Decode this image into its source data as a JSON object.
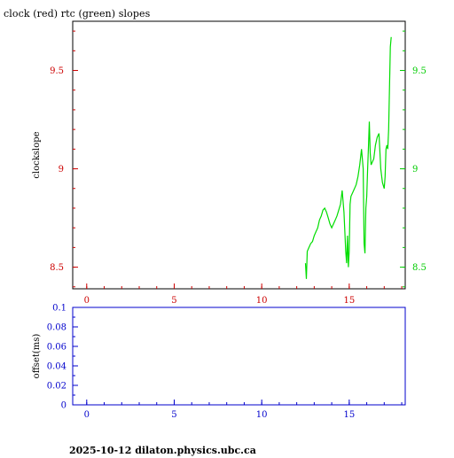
{
  "title": "clock (red) rtc (green) slopes",
  "footer": "2025-10-12  dilaton.physics.ubc.ca",
  "colors": {
    "left_axis": "#cc0000",
    "right_axis": "#00cc00",
    "offset_axis": "#0000cc",
    "frame": "#000000",
    "clock": "#cc0000",
    "rtc": "#00dd00"
  },
  "chart_data": [
    {
      "type": "line",
      "name": "slopes",
      "ylabel": "clockslope",
      "xlim": [
        -0.8,
        18.2
      ],
      "ylim": [
        8.39,
        9.75
      ],
      "x_ticks": [
        0,
        5,
        10,
        15
      ],
      "x_tick_labels": [
        "0",
        "5",
        "10",
        "15"
      ],
      "y_ticks": [
        8.5,
        9,
        9.5
      ],
      "y_tick_labels": [
        "8.5",
        "9",
        "9.5"
      ],
      "y_ticks_right": [
        8.5,
        9,
        9.5
      ],
      "y_tick_labels_right": [
        "8.5",
        "9",
        "9.5"
      ],
      "series": [
        {
          "name": "rtc (green)",
          "color": "#00dd00",
          "x": [
            12.5,
            12.55,
            12.6,
            12.7,
            12.8,
            12.9,
            13.0,
            13.1,
            13.2,
            13.3,
            13.4,
            13.5,
            13.6,
            13.7,
            13.8,
            13.9,
            14.0,
            14.1,
            14.2,
            14.3,
            14.4,
            14.5,
            14.6,
            14.7,
            14.8,
            14.85,
            14.9,
            14.95,
            15.0,
            15.05,
            15.1,
            15.2,
            15.3,
            15.4,
            15.5,
            15.6,
            15.7,
            15.8,
            15.85,
            15.9,
            15.95,
            16.0,
            16.05,
            16.1,
            16.15,
            16.2,
            16.25,
            16.3,
            16.4,
            16.5,
            16.6,
            16.7,
            16.8,
            16.9,
            17.0,
            17.05,
            17.1,
            17.15,
            17.2,
            17.25,
            17.3,
            17.35,
            17.4
          ],
          "values": [
            8.52,
            8.44,
            8.58,
            8.6,
            8.62,
            8.63,
            8.66,
            8.68,
            8.7,
            8.74,
            8.76,
            8.79,
            8.8,
            8.78,
            8.75,
            8.72,
            8.7,
            8.72,
            8.74,
            8.76,
            8.79,
            8.82,
            8.89,
            8.78,
            8.58,
            8.52,
            8.66,
            8.5,
            8.58,
            8.82,
            8.86,
            8.88,
            8.9,
            8.92,
            8.96,
            9.02,
            9.1,
            9.0,
            8.62,
            8.57,
            8.8,
            8.86,
            9.0,
            9.12,
            9.24,
            9.08,
            9.02,
            9.03,
            9.05,
            9.12,
            9.16,
            9.18,
            9.0,
            8.93,
            8.9,
            8.96,
            9.1,
            9.12,
            9.1,
            9.2,
            9.4,
            9.62,
            9.67
          ]
        }
      ]
    },
    {
      "type": "line",
      "name": "offset",
      "ylabel": "offset(ms)",
      "xlim": [
        -0.8,
        18.2
      ],
      "ylim": [
        0,
        0.1
      ],
      "x_ticks": [
        0,
        5,
        10,
        15
      ],
      "x_tick_labels": [
        "0",
        "5",
        "10",
        "15"
      ],
      "y_ticks": [
        0,
        0.02,
        0.04,
        0.06,
        0.08,
        0.1
      ],
      "y_tick_labels": [
        "0",
        "0.02",
        "0.04",
        "0.06",
        "0.08",
        "0.1"
      ],
      "series": []
    }
  ]
}
